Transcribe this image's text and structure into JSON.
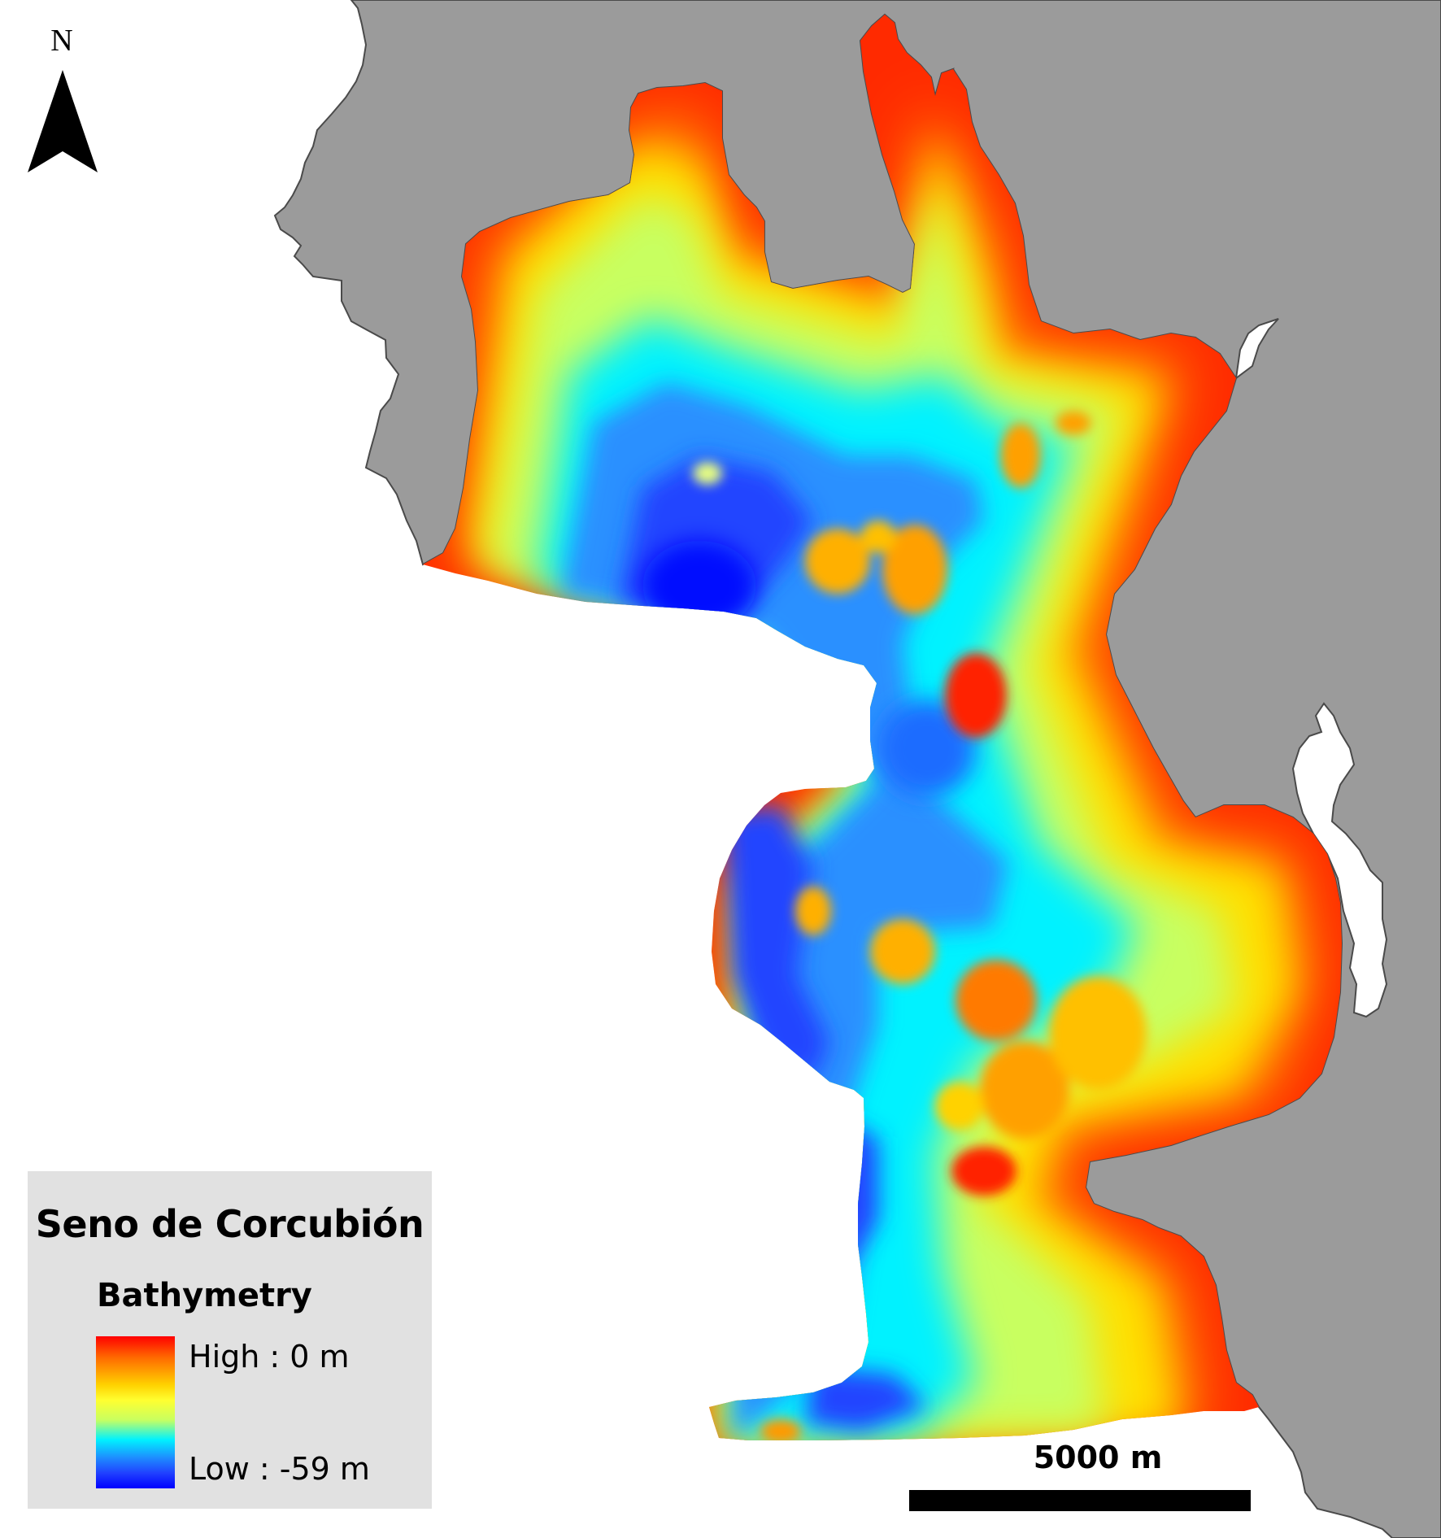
{
  "map": {
    "north_label": "N",
    "land_color": "#9b9b9b",
    "coast_stroke": "#4a4a4a",
    "sea_color": "#ffffff"
  },
  "legend": {
    "title": "Seno de Corcubión",
    "subtitle": "Bathymetry",
    "high_label": "High : 0 m",
    "low_label": "Low : -59 m",
    "background": "#e1e1e1",
    "ramp_colors": [
      "#ff0000",
      "#ff6a00",
      "#ffd200",
      "#ffff30",
      "#c8ff60",
      "#00f2ff",
      "#1e8cff",
      "#2040ff",
      "#0000ff"
    ],
    "depth_range_m": [
      -59,
      0
    ]
  },
  "scale": {
    "label": "5000 m"
  }
}
